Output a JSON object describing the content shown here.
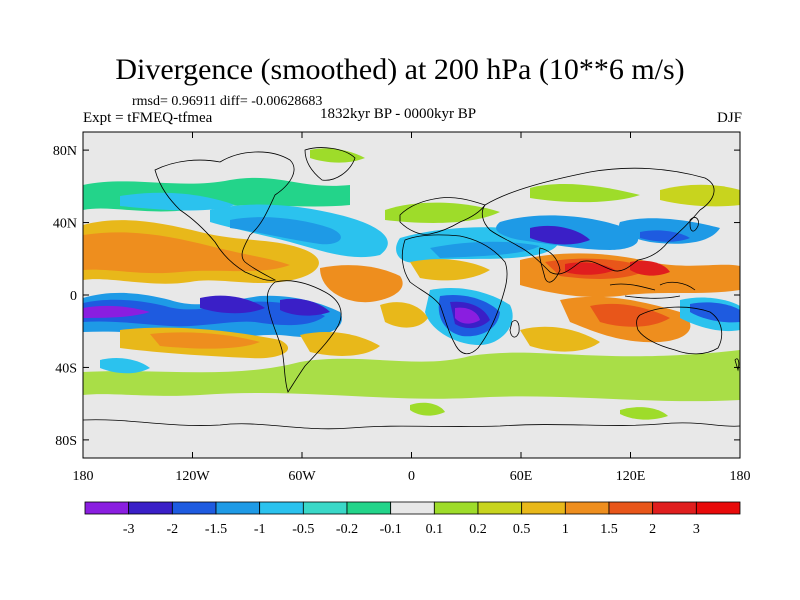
{
  "title": "Divergence (smoothed) at 200 hPa (10**6 m/s)",
  "stats": "rmsd= 0.96911 diff= -0.00628683",
  "period": "1832kyr BP - 0000kyr BP",
  "experiment": "Expt = tFMEQ-tfmea",
  "season": "DJF",
  "axes": {
    "x_ticks": [
      "180",
      "120W",
      "60W",
      "0",
      "60E",
      "120E",
      "180"
    ],
    "y_ticks": [
      "80N",
      "40N",
      "0",
      "40S",
      "80S"
    ]
  },
  "colorbar": {
    "labels": [
      "-3",
      "-2",
      "-1.5",
      "-1",
      "-0.5",
      "-0.2",
      "-0.1",
      "0.1",
      "0.2",
      "0.5",
      "1",
      "1.5",
      "2",
      "3"
    ],
    "colors": [
      "#8a1ee0",
      "#3a1fc7",
      "#1e5be0",
      "#1e9ae6",
      "#2bc2ee",
      "#3ad8c8",
      "#23d48a",
      "#e8e8e8",
      "#9edc2a",
      "#c8d41e",
      "#e8b81a",
      "#ee8e1e",
      "#e8561a",
      "#e01e1e",
      "#e80a0a"
    ]
  }
}
